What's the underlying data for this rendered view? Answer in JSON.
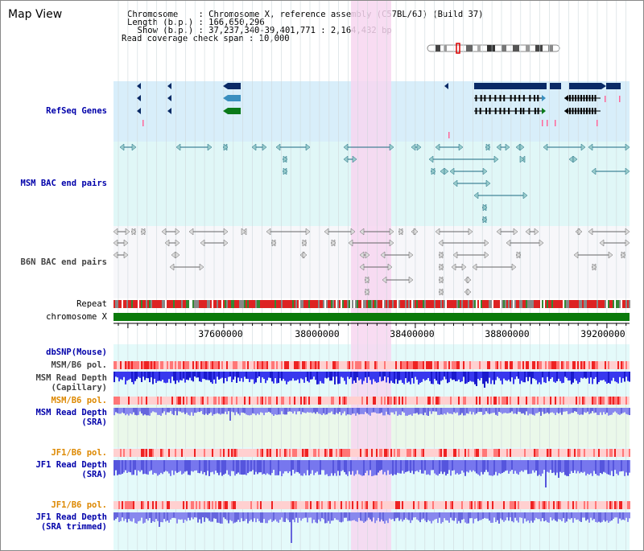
{
  "page": {
    "title": "Map View"
  },
  "info": {
    "chromosome_line": "Chromosome    : Chromosome X, reference assembly (C57BL/6J) (Build 37)",
    "length_line": "Length (b.p.) : 166,650,296",
    "show_line": "  Show (b.p.) : 37,237,340-39,401,771 : 2,164,432 bp",
    "coverage_line": "Read coverage check span : 10,000"
  },
  "tracks": {
    "refseq": "RefSeq Genes",
    "msm_bac": "MSM BAC end pairs",
    "b6n_bac": "B6N BAC end pairs",
    "repeat": "Repeat",
    "chromosome": "chromosome X",
    "dbsnp": "dbSNP(Mouse)",
    "msm_b6_pol_1": "MSM/B6 pol.",
    "msm_read_depth_cap_1": "MSM Read Depth",
    "msm_read_depth_cap_2": "(Capillary)",
    "msm_b6_pol_2": "MSM/B6 pol.",
    "msm_read_depth_sra_1": "MSM Read Depth",
    "msm_read_depth_sra_2": "(SRA)",
    "jf1_b6_pol_1": "JF1/B6 pol.",
    "jf1_read_depth_sra_1": "JF1 Read Depth",
    "jf1_read_depth_sra_2": "(SRA)",
    "jf1_b6_pol_2": "JF1/B6 pol.",
    "jf1_read_depth_trim_1": "JF1 Read Depth",
    "jf1_read_depth_trim_2": "(SRA trimmed)"
  },
  "axis": {
    "tick_600": "37600000",
    "tick_800": "38000000",
    "tick_400": "38400000",
    "tick_880": "38800000",
    "tick_920": "39200000"
  },
  "colors": {
    "highlight": "#f7d6f0",
    "refseq_bg": "#d8eefa",
    "bac_bg": "#e0f7f7",
    "gene_dark": "#0a2a66",
    "gene_mid": "#3a8fbf",
    "gene_green": "#0a7a1a",
    "read_depth": "#3333ee",
    "pol_red": "#ee3333"
  }
}
